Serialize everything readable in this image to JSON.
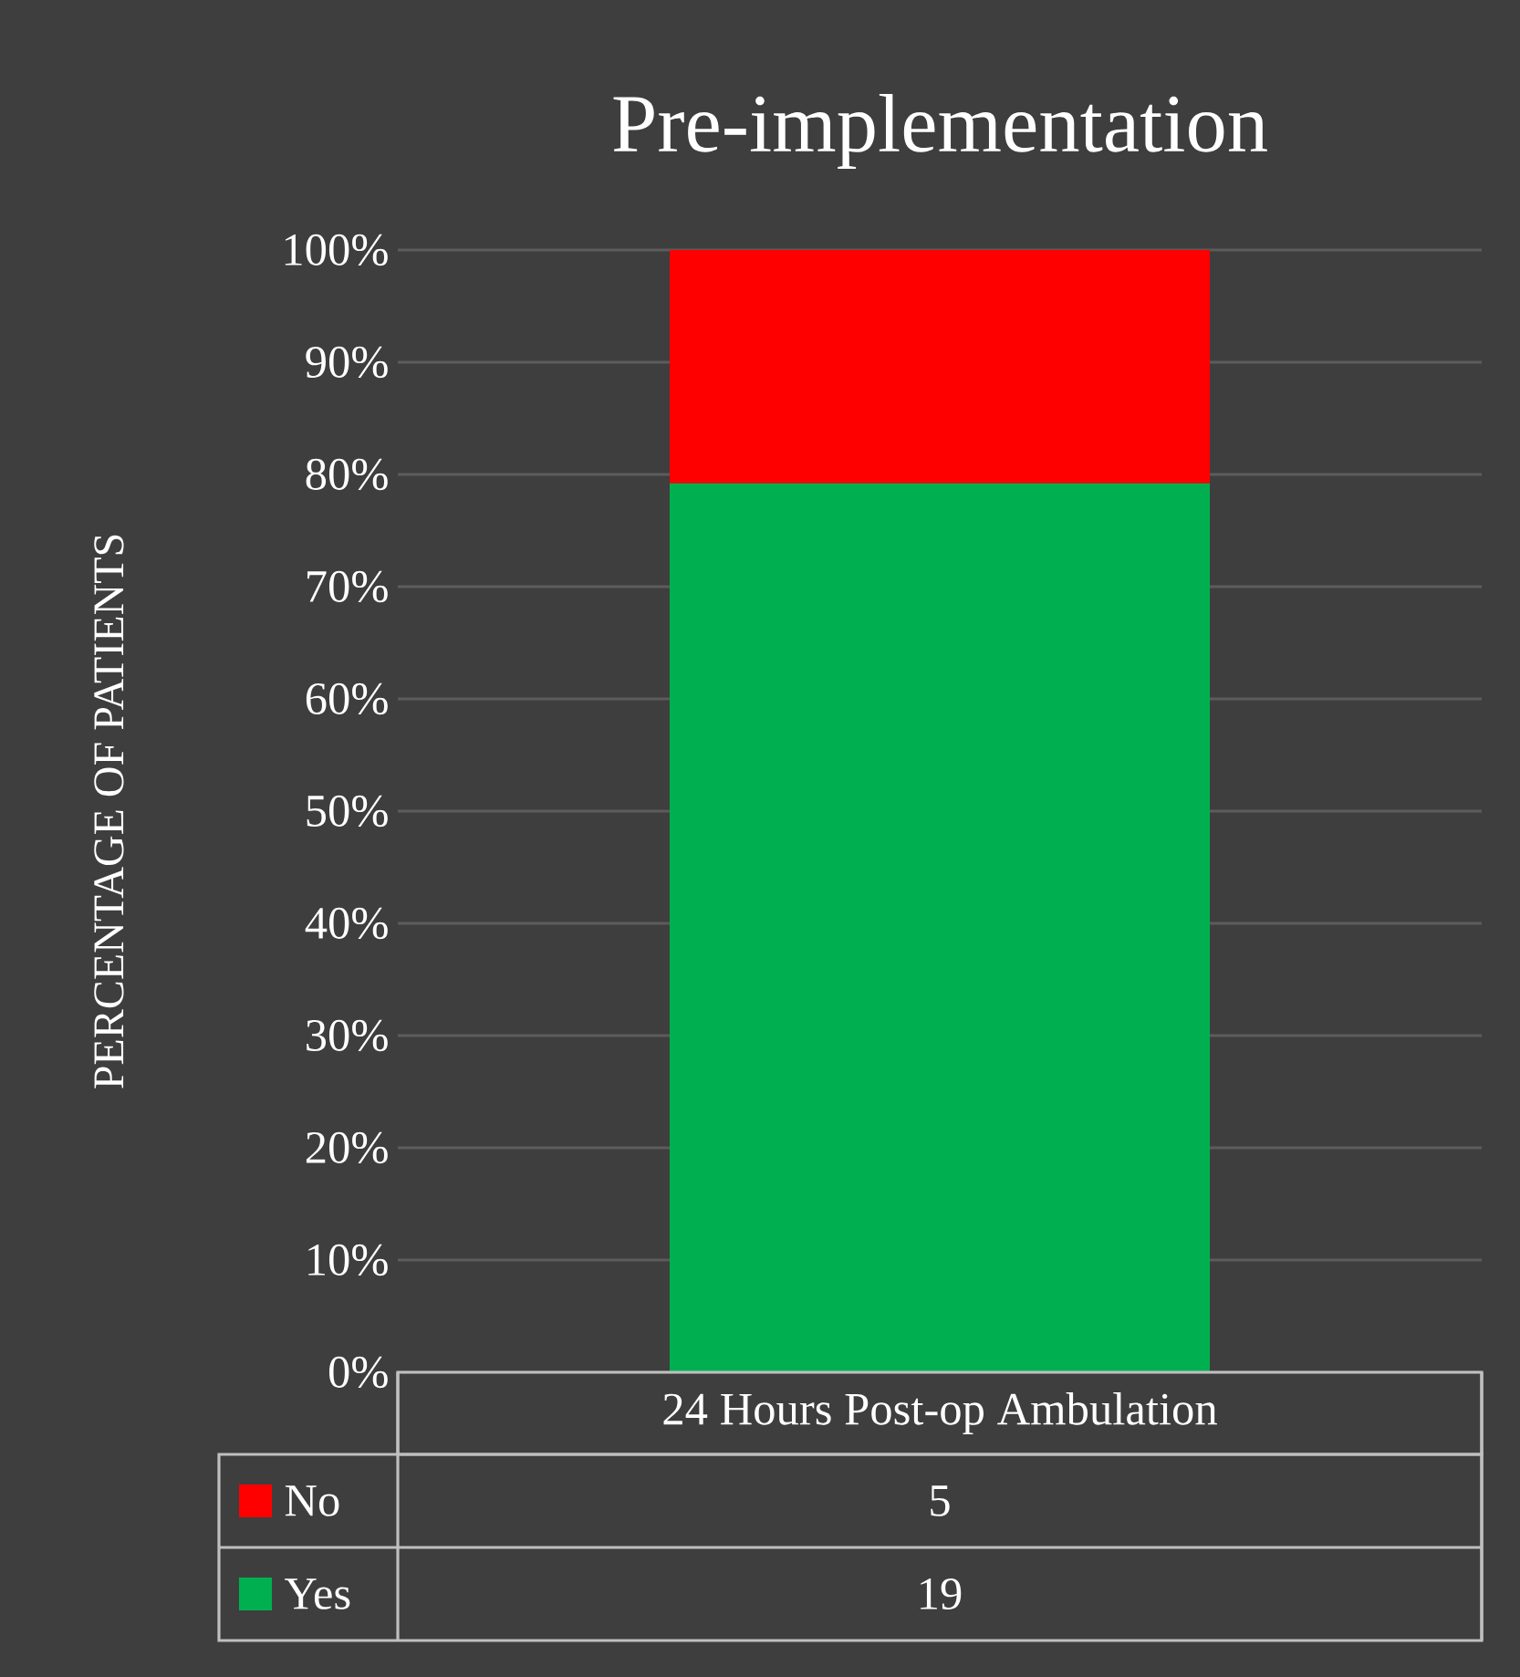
{
  "chart_data": {
    "type": "bar",
    "stacked": true,
    "title": "Pre-implementation",
    "ylabel": "PERCENTAGE OF PATIENTS",
    "categories": [
      "24 Hours Post-op Ambulation"
    ],
    "series": [
      {
        "name": "Yes",
        "color": "#00b050",
        "values": [
          79.2
        ]
      },
      {
        "name": "No",
        "color": "#ff0000",
        "values": [
          20.8
        ]
      }
    ],
    "annotations": [
      "5",
      "19"
    ],
    "ylim": [
      0,
      100
    ],
    "yticks": [
      {
        "value": 0,
        "label": "0%"
      },
      {
        "value": 10,
        "label": "10%"
      },
      {
        "value": 20,
        "label": "20%"
      },
      {
        "value": 30,
        "label": "30%"
      },
      {
        "value": 40,
        "label": "40%"
      },
      {
        "value": 50,
        "label": "50%"
      },
      {
        "value": 60,
        "label": "60%"
      },
      {
        "value": 70,
        "label": "70%"
      },
      {
        "value": 80,
        "label": "80%"
      },
      {
        "value": 90,
        "label": "90%"
      },
      {
        "value": 100,
        "label": "100%"
      }
    ],
    "grid": "y",
    "legend": "bottom left"
  }
}
